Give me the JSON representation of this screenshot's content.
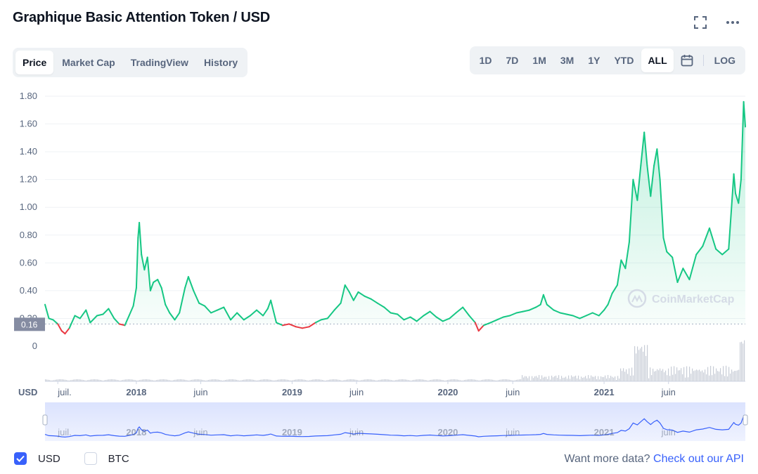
{
  "title": "Graphique Basic Attention Token / USD",
  "tabs": [
    {
      "label": "Price",
      "active": true
    },
    {
      "label": "Market Cap",
      "active": false
    },
    {
      "label": "TradingView",
      "active": false
    },
    {
      "label": "History",
      "active": false
    }
  ],
  "ranges": [
    {
      "label": "1D",
      "active": false
    },
    {
      "label": "7D",
      "active": false
    },
    {
      "label": "1M",
      "active": false
    },
    {
      "label": "3M",
      "active": false
    },
    {
      "label": "1Y",
      "active": false
    },
    {
      "label": "YTD",
      "active": false
    },
    {
      "label": "ALL",
      "active": true
    }
  ],
  "log_label": "LOG",
  "icons": {
    "fullscreen": "fullscreen-icon",
    "more": "more-icon",
    "calendar": "calendar-icon"
  },
  "colors": {
    "up": "#16c784",
    "down": "#ea3943",
    "navigator": "#3861fb",
    "grid": "#eff2f5"
  },
  "currency_label": "USD",
  "current_price_tag": "0.16",
  "watermark": "CoinMarketCap",
  "chart_data": {
    "type": "line",
    "title": "Graphique Basic Attention Token / USD",
    "ylim": [
      0,
      1.8
    ],
    "y_ticks": [
      "1.80",
      "1.60",
      "1.40",
      "1.20",
      "1.00",
      "0.80",
      "0.60",
      "0.40",
      "0.20",
      "0"
    ],
    "x_ticks": [
      {
        "label": "juil.",
        "date": "2017-07-01",
        "bold": false
      },
      {
        "label": "2018",
        "date": "2018-01-01",
        "bold": true
      },
      {
        "label": "juin",
        "date": "2018-06-01",
        "bold": false
      },
      {
        "label": "2019",
        "date": "2019-01-01",
        "bold": true
      },
      {
        "label": "juin",
        "date": "2019-06-01",
        "bold": false
      },
      {
        "label": "2020",
        "date": "2020-01-01",
        "bold": true
      },
      {
        "label": "juin",
        "date": "2020-06-01",
        "bold": false
      },
      {
        "label": "2021",
        "date": "2021-01-01",
        "bold": true
      },
      {
        "label": "juin",
        "date": "2021-06-01",
        "bold": false
      }
    ],
    "x_range": [
      "2017-06-01",
      "2021-11-28"
    ],
    "baseline": 0.16,
    "series": [
      {
        "points": [
          [
            "2017-06-01",
            0.3
          ],
          [
            "2017-06-10",
            0.2
          ],
          [
            "2017-06-20",
            0.19
          ],
          [
            "2017-07-01",
            0.16
          ],
          [
            "2017-07-10",
            0.11
          ],
          [
            "2017-07-18",
            0.09
          ],
          [
            "2017-07-28",
            0.13
          ],
          [
            "2017-08-10",
            0.22
          ],
          [
            "2017-08-22",
            0.2
          ],
          [
            "2017-09-05",
            0.26
          ],
          [
            "2017-09-15",
            0.17
          ],
          [
            "2017-10-01",
            0.22
          ],
          [
            "2017-10-15",
            0.23
          ],
          [
            "2017-10-28",
            0.27
          ],
          [
            "2017-11-10",
            0.2
          ],
          [
            "2017-11-22",
            0.16
          ],
          [
            "2017-12-05",
            0.15
          ],
          [
            "2017-12-15",
            0.22
          ],
          [
            "2017-12-25",
            0.29
          ],
          [
            "2018-01-01",
            0.42
          ],
          [
            "2018-01-05",
            0.78
          ],
          [
            "2018-01-08",
            0.89
          ],
          [
            "2018-01-13",
            0.66
          ],
          [
            "2018-01-20",
            0.55
          ],
          [
            "2018-01-27",
            0.64
          ],
          [
            "2018-02-03",
            0.4
          ],
          [
            "2018-02-10",
            0.46
          ],
          [
            "2018-02-20",
            0.48
          ],
          [
            "2018-03-01",
            0.42
          ],
          [
            "2018-03-10",
            0.3
          ],
          [
            "2018-03-20",
            0.24
          ],
          [
            "2018-04-01",
            0.19
          ],
          [
            "2018-04-12",
            0.24
          ],
          [
            "2018-04-25",
            0.42
          ],
          [
            "2018-05-03",
            0.5
          ],
          [
            "2018-05-15",
            0.4
          ],
          [
            "2018-05-28",
            0.31
          ],
          [
            "2018-06-10",
            0.29
          ],
          [
            "2018-06-25",
            0.24
          ],
          [
            "2018-07-10",
            0.26
          ],
          [
            "2018-07-25",
            0.28
          ],
          [
            "2018-08-10",
            0.19
          ],
          [
            "2018-08-25",
            0.24
          ],
          [
            "2018-09-10",
            0.19
          ],
          [
            "2018-09-25",
            0.22
          ],
          [
            "2018-10-10",
            0.26
          ],
          [
            "2018-10-25",
            0.22
          ],
          [
            "2018-11-05",
            0.27
          ],
          [
            "2018-11-12",
            0.33
          ],
          [
            "2018-11-25",
            0.17
          ],
          [
            "2018-12-10",
            0.15
          ],
          [
            "2018-12-25",
            0.16
          ],
          [
            "2019-01-10",
            0.14
          ],
          [
            "2019-01-25",
            0.13
          ],
          [
            "2019-02-10",
            0.14
          ],
          [
            "2019-02-25",
            0.17
          ],
          [
            "2019-03-10",
            0.19
          ],
          [
            "2019-03-25",
            0.2
          ],
          [
            "2019-04-10",
            0.26
          ],
          [
            "2019-04-25",
            0.31
          ],
          [
            "2019-05-05",
            0.44
          ],
          [
            "2019-05-15",
            0.39
          ],
          [
            "2019-05-25",
            0.33
          ],
          [
            "2019-06-05",
            0.39
          ],
          [
            "2019-06-20",
            0.36
          ],
          [
            "2019-07-05",
            0.34
          ],
          [
            "2019-07-20",
            0.31
          ],
          [
            "2019-08-05",
            0.28
          ],
          [
            "2019-08-20",
            0.24
          ],
          [
            "2019-09-05",
            0.23
          ],
          [
            "2019-09-20",
            0.19
          ],
          [
            "2019-10-05",
            0.21
          ],
          [
            "2019-10-20",
            0.18
          ],
          [
            "2019-11-05",
            0.22
          ],
          [
            "2019-11-20",
            0.25
          ],
          [
            "2019-12-05",
            0.21
          ],
          [
            "2019-12-20",
            0.18
          ],
          [
            "2020-01-05",
            0.2
          ],
          [
            "2020-01-20",
            0.24
          ],
          [
            "2020-02-05",
            0.28
          ],
          [
            "2020-02-20",
            0.22
          ],
          [
            "2020-03-05",
            0.17
          ],
          [
            "2020-03-13",
            0.11
          ],
          [
            "2020-03-25",
            0.15
          ],
          [
            "2020-04-10",
            0.17
          ],
          [
            "2020-04-25",
            0.19
          ],
          [
            "2020-05-10",
            0.21
          ],
          [
            "2020-05-25",
            0.22
          ],
          [
            "2020-06-10",
            0.24
          ],
          [
            "2020-06-25",
            0.25
          ],
          [
            "2020-07-10",
            0.26
          ],
          [
            "2020-07-25",
            0.28
          ],
          [
            "2020-08-05",
            0.3
          ],
          [
            "2020-08-12",
            0.37
          ],
          [
            "2020-08-20",
            0.3
          ],
          [
            "2020-09-05",
            0.26
          ],
          [
            "2020-09-20",
            0.24
          ],
          [
            "2020-10-05",
            0.23
          ],
          [
            "2020-10-20",
            0.22
          ],
          [
            "2020-11-05",
            0.2
          ],
          [
            "2020-11-20",
            0.22
          ],
          [
            "2020-12-05",
            0.24
          ],
          [
            "2020-12-20",
            0.22
          ],
          [
            "2021-01-01",
            0.26
          ],
          [
            "2021-01-10",
            0.3
          ],
          [
            "2021-01-20",
            0.38
          ],
          [
            "2021-02-01",
            0.44
          ],
          [
            "2021-02-10",
            0.62
          ],
          [
            "2021-02-20",
            0.56
          ],
          [
            "2021-03-01",
            0.75
          ],
          [
            "2021-03-10",
            1.2
          ],
          [
            "2021-03-20",
            1.05
          ],
          [
            "2021-03-28",
            1.3
          ],
          [
            "2021-04-05",
            1.54
          ],
          [
            "2021-04-12",
            1.3
          ],
          [
            "2021-04-20",
            1.08
          ],
          [
            "2021-04-28",
            1.3
          ],
          [
            "2021-05-05",
            1.42
          ],
          [
            "2021-05-12",
            1.2
          ],
          [
            "2021-05-20",
            0.78
          ],
          [
            "2021-05-28",
            0.68
          ],
          [
            "2021-06-10",
            0.64
          ],
          [
            "2021-06-22",
            0.46
          ],
          [
            "2021-07-05",
            0.56
          ],
          [
            "2021-07-20",
            0.48
          ],
          [
            "2021-08-05",
            0.66
          ],
          [
            "2021-08-20",
            0.72
          ],
          [
            "2021-09-05",
            0.85
          ],
          [
            "2021-09-20",
            0.7
          ],
          [
            "2021-10-05",
            0.66
          ],
          [
            "2021-10-20",
            0.7
          ],
          [
            "2021-11-01",
            1.24
          ],
          [
            "2021-11-05",
            1.1
          ],
          [
            "2021-11-12",
            1.03
          ],
          [
            "2021-11-18",
            1.2
          ],
          [
            "2021-11-24",
            1.76
          ],
          [
            "2021-11-28",
            1.58
          ]
        ]
      }
    ]
  },
  "footer": {
    "usd_label": "USD",
    "btc_label": "BTC",
    "api_text": "Want more data?",
    "api_link": "Check out our API"
  }
}
